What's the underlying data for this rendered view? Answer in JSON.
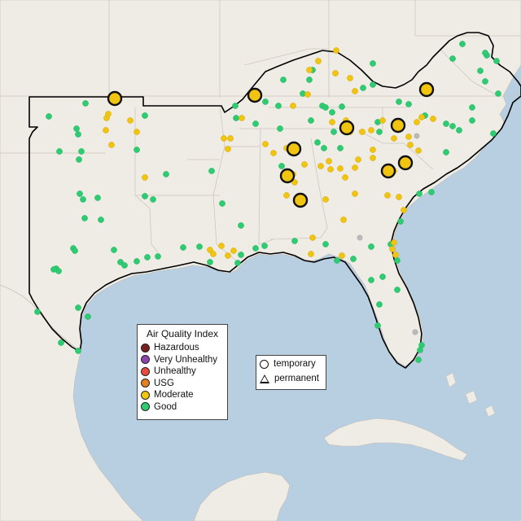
{
  "colors": {
    "hazardous": "#7a1f1f",
    "very_unhealthy": "#8e44ad",
    "unhealthy": "#e74c3c",
    "usg": "#e67e22",
    "moderate": "#f1c40f",
    "good": "#2ecc71",
    "no_data": "#b8b8b8",
    "land": "#efece6",
    "water": "#b8cfe2",
    "region_outline": "#000000"
  },
  "legend": {
    "title": "Air Quality Index",
    "items": [
      {
        "label": "Hazardous",
        "color": "#7a1f1f"
      },
      {
        "label": "Very Unhealthy",
        "color": "#8e44ad"
      },
      {
        "label": "Unhealthy",
        "color": "#e74c3c"
      },
      {
        "label": "USG",
        "color": "#e67e22"
      },
      {
        "label": "Moderate",
        "color": "#f1c40f"
      },
      {
        "label": "Good",
        "color": "#2ecc71"
      }
    ]
  },
  "type_legend": {
    "temporary": "temporary",
    "permanent": "permanent"
  }
}
